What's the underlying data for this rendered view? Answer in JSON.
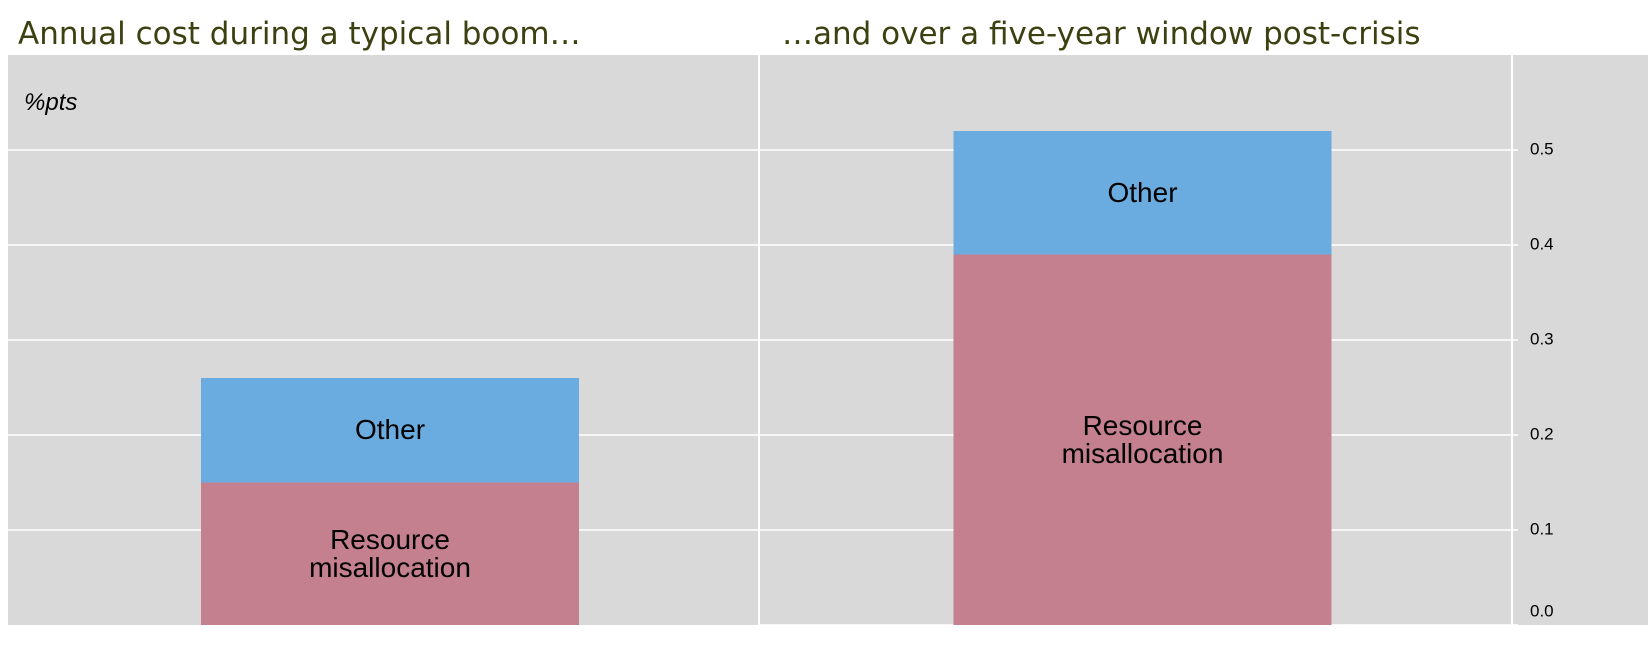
{
  "chart_data": [
    {
      "type": "stacked_bar",
      "title": "Annual cost during a typical boom…",
      "unit_label": "%pts",
      "series": [
        {
          "name": "Resource misallocation",
          "color": "#c4808e",
          "values": [
            0.15
          ]
        },
        {
          "name": "Other",
          "color": "#6aace0",
          "values": [
            0.11
          ]
        }
      ],
      "ylim": [
        0,
        0.6
      ],
      "yticks": [
        0.1,
        0.2,
        0.3,
        0.4,
        0.5
      ],
      "grid": true
    },
    {
      "type": "stacked_bar",
      "title": "…and over a five-year window post-crisis",
      "series": [
        {
          "name": "Resource misallocation",
          "color": "#c4808e",
          "values": [
            0.39
          ]
        },
        {
          "name": "Other",
          "color": "#6aace0",
          "values": [
            0.13
          ]
        }
      ],
      "ylim": [
        0,
        0.6
      ],
      "yticks": [
        {
          "value": 0,
          "label": "0.0"
        },
        0.1,
        0.2,
        0.3,
        0.4,
        0.5
      ],
      "grid": true,
      "axis_side": "right"
    }
  ]
}
